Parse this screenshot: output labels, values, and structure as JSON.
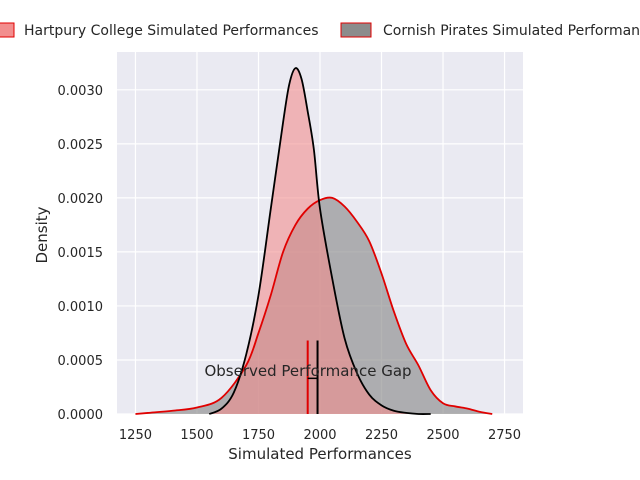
{
  "chart_data": {
    "type": "area",
    "title": "",
    "xlabel": "Simulated Performances",
    "ylabel": "Density",
    "xlim": [
      1175,
      2825
    ],
    "ylim": [
      0,
      0.00335
    ],
    "xticks": [
      1250,
      1500,
      1750,
      2000,
      2250,
      2500,
      2750
    ],
    "xtick_labels": [
      "1250",
      "1500",
      "1750",
      "2000",
      "2250",
      "2500",
      "2750"
    ],
    "yticks": [
      0,
      0.0005,
      0.001,
      0.0015,
      0.002,
      0.0025,
      0.003
    ],
    "ytick_labels": [
      "0.0000",
      "0.0005",
      "0.0010",
      "0.0015",
      "0.0020",
      "0.0025",
      "0.0030"
    ],
    "grid": true,
    "legend_position": "top",
    "annotation": "Observed Performance Gap",
    "series": [
      {
        "name": "Hartpury College Simulated Performances",
        "fill": "#f28e8e",
        "line": "#000000",
        "observed_marker": 1950,
        "x": [
          1550,
          1600,
          1650,
          1700,
          1750,
          1800,
          1850,
          1875,
          1900,
          1925,
          1950,
          1975,
          2000,
          2050,
          2100,
          2150,
          2200,
          2250,
          2300,
          2350,
          2400,
          2450
        ],
        "density": [
          0.0,
          5e-05,
          0.0002,
          0.00055,
          0.0011,
          0.0019,
          0.0027,
          0.00305,
          0.0032,
          0.0031,
          0.0028,
          0.00245,
          0.0019,
          0.00125,
          0.0007,
          0.00038,
          0.00018,
          8e-05,
          3e-05,
          1e-05,
          0.0,
          0.0
        ]
      },
      {
        "name": "Cornish Pirates Simulated Performances",
        "fill": "#8c8c8c",
        "line": "#e00000",
        "observed_marker": 1990,
        "x": [
          1250,
          1300,
          1400,
          1500,
          1600,
          1700,
          1750,
          1800,
          1850,
          1900,
          1950,
          2000,
          2050,
          2100,
          2150,
          2200,
          2250,
          2300,
          2350,
          2400,
          2450,
          2500,
          2550,
          2600,
          2650,
          2700
        ],
        "density": [
          0.0,
          1e-05,
          3e-05,
          6e-05,
          0.00015,
          0.00045,
          0.00075,
          0.0011,
          0.0015,
          0.00175,
          0.0019,
          0.00198,
          0.002,
          0.00192,
          0.00178,
          0.0016,
          0.0013,
          0.00095,
          0.00065,
          0.00045,
          0.00022,
          0.0001,
          7e-05,
          5e-05,
          2e-05,
          0.0
        ]
      }
    ]
  }
}
